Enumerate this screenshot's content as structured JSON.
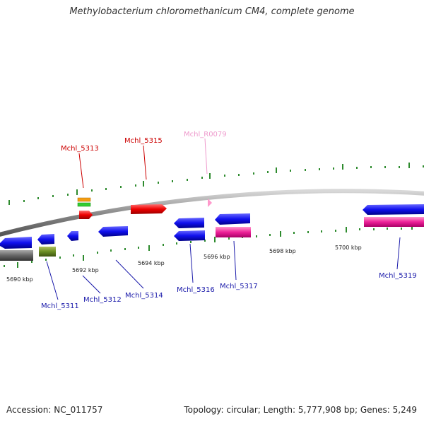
{
  "title": "Methylobacterium chloromethanicum CM4, complete genome",
  "footer": {
    "accession": "Accession: NC_011757",
    "topology": "Topology: circular; Length: 5,777,908 bp; Genes: 5,249"
  },
  "colors": {
    "forward_label": "#cc0000",
    "reverse_label": "#1a1aaa",
    "rna_label": "#ee99cc",
    "backbone": "#888888",
    "tick": "#2e8b2e"
  },
  "kbp_labels": [
    "5690 kbp",
    "5692 kbp",
    "5694 kbp",
    "5696 kbp",
    "5698 kbp",
    "5700 kbp"
  ],
  "gene_labels": {
    "forward": [
      "Mchl_5313",
      "Mchl_5315"
    ],
    "rna": [
      "Mchl_R0079"
    ],
    "reverse": [
      "Mchl_5311",
      "Mchl_5312",
      "Mchl_5314",
      "Mchl_5316",
      "Mchl_5317",
      "Mchl_5319"
    ]
  }
}
